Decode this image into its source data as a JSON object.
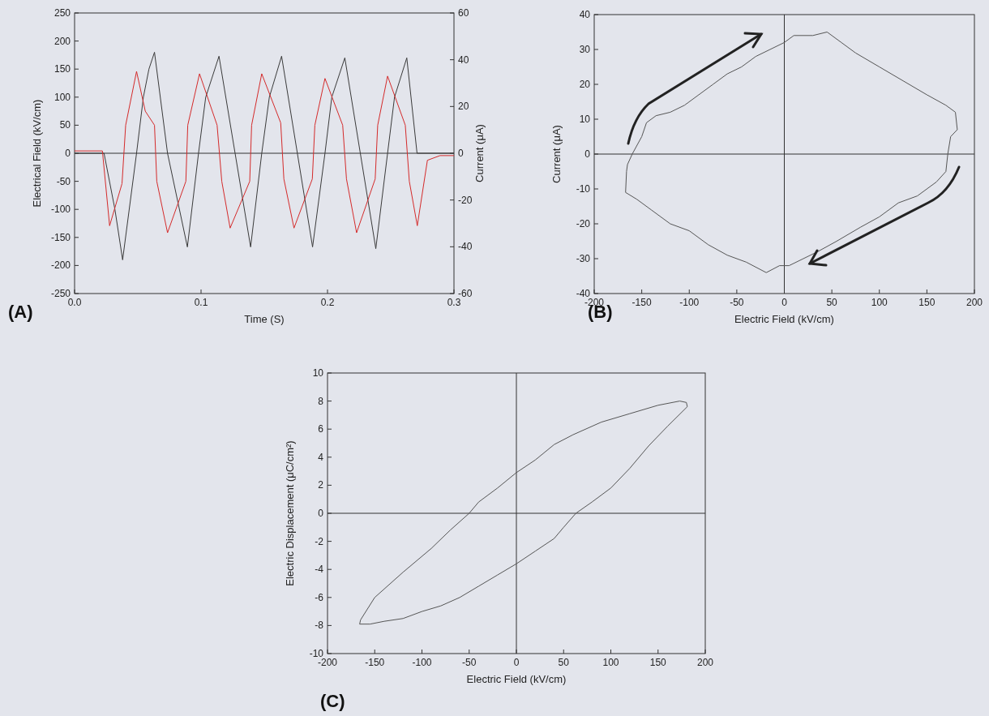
{
  "chart_data": [
    {
      "type": "line",
      "xlabel": "Time (S)",
      "ylabel": "Electrical Field (kV/cm)",
      "y2label": "Current (μA)",
      "xlim": [
        0,
        0.3
      ],
      "xticks": [
        {
          "value": 0,
          "label": "0.0"
        },
        0.1,
        0.2,
        0.3
      ],
      "ylim": [
        -250,
        250
      ],
      "yticks": [
        -250,
        -200,
        -150,
        -100,
        -50,
        0,
        50,
        100,
        150,
        200,
        250
      ],
      "y2lim": [
        -60,
        60
      ],
      "y2ticks": [
        -60,
        -40,
        -20,
        0,
        20,
        40,
        60
      ],
      "series": [
        {
          "color": "#3a3a3a",
          "x": [
            0,
            0.0233,
            0.0319,
            0.038,
            0.049,
            0.0544,
            0.0588,
            0.0632,
            0.0735,
            0.0892,
            0.098,
            0.1037,
            0.1142,
            0.1392,
            0.148,
            0.154,
            0.1637,
            0.1882,
            0.198,
            0.2034,
            0.2137,
            0.2382,
            0.2475,
            0.253,
            0.2627,
            0.2708,
            0.3
          ],
          "values": [
            0,
            0,
            -100,
            -190,
            0,
            100,
            150,
            180,
            0,
            -167,
            0,
            100,
            173,
            -167,
            0,
            100,
            173,
            -167,
            0,
            100,
            170,
            -170,
            0,
            100,
            170,
            0,
            0
          ]
        },
        {
          "color": "#d42a2a",
          "axis": "y2",
          "x": [
            0,
            0.022,
            0.0277,
            0.0375,
            0.0404,
            0.049,
            0.0559,
            0.0632,
            0.065,
            0.0735,
            0.088,
            0.0895,
            0.0988,
            0.1127,
            0.1164,
            0.123,
            0.1385,
            0.14,
            0.148,
            0.163,
            0.1655,
            0.1735,
            0.188,
            0.19,
            0.198,
            0.212,
            0.215,
            0.223,
            0.2377,
            0.2397,
            0.2475,
            0.2615,
            0.2647,
            0.271,
            0.279,
            0.289,
            0.3
          ],
          "values": [
            1,
            1,
            -31,
            -13,
            12,
            35,
            18,
            12,
            -12,
            -34,
            -12,
            12,
            34,
            12,
            -12,
            -32,
            -12,
            12,
            34,
            13,
            -11,
            -32,
            -11,
            12,
            32,
            12,
            -11,
            -34,
            -11,
            12,
            33,
            12,
            -12,
            -31,
            -3,
            -1,
            -1
          ]
        }
      ],
      "ref_lines": [
        {
          "axis": "y",
          "value": 0,
          "color": "#333333"
        }
      ],
      "annotations": [
        "(A)"
      ]
    },
    {
      "type": "line",
      "xlabel": "Electric Field (kV/cm)",
      "ylabel": "Current (μA)",
      "xlim": [
        -200,
        200
      ],
      "xticks": [
        -200,
        -150,
        -100,
        -50,
        0,
        50,
        100,
        150,
        200
      ],
      "ylim": [
        -40,
        40
      ],
      "yticks": [
        -40,
        -30,
        -20,
        -10,
        0,
        10,
        20,
        30,
        40
      ],
      "series": [
        {
          "color": "#555555",
          "x": [
            -167,
            -166,
            -165,
            -160,
            -150,
            -145,
            -135,
            -120,
            -105,
            -90,
            -75,
            -60,
            -45,
            -30,
            -15,
            0,
            10,
            30,
            45,
            60,
            75,
            100,
            125,
            150,
            170,
            180,
            182
          ],
          "values": [
            -11,
            -5,
            -3,
            0,
            5,
            9,
            11,
            12,
            14,
            17,
            20,
            23,
            25,
            28,
            30,
            32,
            34,
            34,
            35,
            32,
            29,
            25,
            21,
            17,
            14,
            12,
            7
          ]
        },
        {
          "color": "#555555",
          "x": [
            -167,
            -155,
            -140,
            -120,
            -100,
            -80,
            -60,
            -40,
            -19,
            -5,
            5,
            20,
            35,
            55,
            80,
            100,
            120,
            140,
            160,
            170,
            172,
            175,
            182
          ],
          "values": [
            -11,
            -13,
            -16,
            -20,
            -22,
            -26,
            -29,
            -31,
            -34,
            -32,
            -32,
            -30,
            -28,
            -25,
            -21,
            -18,
            -14,
            -12,
            -8,
            -5,
            0,
            5,
            7
          ]
        }
      ],
      "ref_lines": [
        {
          "axis": "x",
          "value": 0,
          "color": "#333333"
        },
        {
          "axis": "y",
          "value": 0,
          "color": "#333333"
        }
      ],
      "annotations": [
        "(B)"
      ]
    },
    {
      "type": "line",
      "xlabel": "Electric Field (kV/cm)",
      "ylabel": "Electric Displacement (μC/cm²)",
      "xlim": [
        -200,
        200
      ],
      "xticks": [
        -200,
        -150,
        -100,
        -50,
        0,
        50,
        100,
        150,
        200
      ],
      "ylim": [
        -10,
        10
      ],
      "yticks": [
        -10,
        -8,
        -6,
        -4,
        -2,
        0,
        2,
        4,
        6,
        8,
        10
      ],
      "series": [
        {
          "color": "#555555",
          "x": [
            -166,
            -165,
            -150,
            -120,
            -90,
            -70,
            -50,
            -40,
            -20,
            0,
            20,
            40,
            60,
            90,
            120,
            150,
            173,
            180,
            181
          ],
          "values": [
            -7.9,
            -7.6,
            -6,
            -4.2,
            -2.5,
            -1.2,
            0,
            0.8,
            1.8,
            2.9,
            3.8,
            4.9,
            5.6,
            6.5,
            7.1,
            7.7,
            8,
            7.9,
            7.6
          ]
        },
        {
          "color": "#555555",
          "x": [
            -166,
            -155,
            -140,
            -120,
            -100,
            -80,
            -60,
            -40,
            -20,
            0,
            20,
            40,
            50,
            63,
            80,
            100,
            120,
            140,
            160,
            181
          ],
          "values": [
            -7.9,
            -7.9,
            -7.7,
            -7.5,
            -7,
            -6.6,
            -6,
            -5.2,
            -4.4,
            -3.6,
            -2.7,
            -1.8,
            -1,
            0,
            0.8,
            1.8,
            3.2,
            4.8,
            6.2,
            7.6
          ]
        }
      ],
      "ref_lines": [
        {
          "axis": "x",
          "value": 0,
          "color": "#333333"
        },
        {
          "axis": "y",
          "value": 0,
          "color": "#333333"
        }
      ],
      "annotations": [
        "(C)"
      ]
    }
  ]
}
